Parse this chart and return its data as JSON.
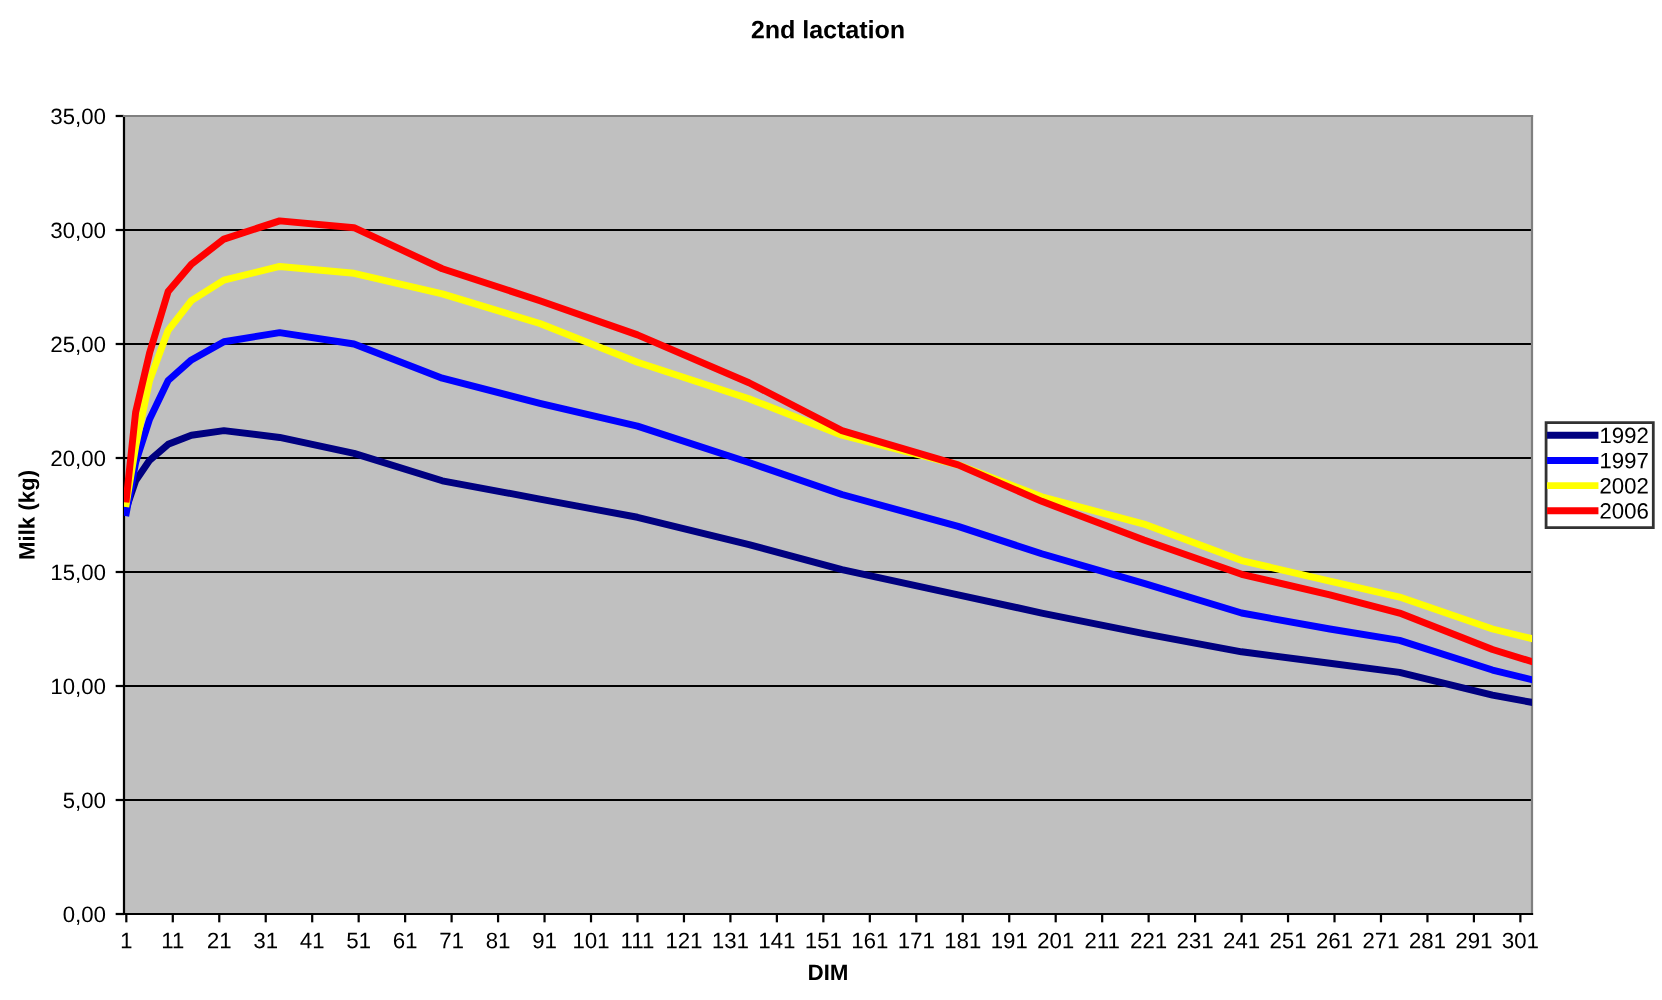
{
  "chart_data": {
    "type": "line",
    "title": "2nd lactation",
    "xlabel": "DIM",
    "ylabel": "Milk (kg)",
    "x": [
      1,
      3,
      6,
      10,
      15,
      22,
      34,
      50,
      69,
      90,
      111,
      135,
      155,
      180,
      198,
      220,
      241,
      260,
      275,
      295,
      303
    ],
    "series": [
      {
        "name": "1992",
        "color": "#000080",
        "values": [
          17.8,
          19.0,
          19.9,
          20.6,
          21.0,
          21.2,
          20.9,
          20.2,
          19.0,
          18.2,
          17.4,
          16.2,
          15.1,
          14.0,
          13.2,
          12.3,
          11.5,
          11.0,
          10.6,
          9.6,
          9.3
        ]
      },
      {
        "name": "1997",
        "color": "#0000ff",
        "values": [
          17.6,
          19.8,
          21.7,
          23.4,
          24.3,
          25.1,
          25.5,
          25.0,
          23.5,
          22.4,
          21.4,
          19.8,
          18.4,
          17.0,
          15.8,
          14.5,
          13.2,
          12.5,
          12.0,
          10.7,
          10.3
        ]
      },
      {
        "name": "2002",
        "color": "#ffff00",
        "values": [
          18.0,
          20.5,
          23.4,
          25.6,
          26.9,
          27.8,
          28.4,
          28.1,
          27.2,
          25.9,
          24.2,
          22.6,
          21.0,
          19.7,
          18.3,
          17.1,
          15.5,
          14.6,
          13.9,
          12.5,
          12.1
        ]
      },
      {
        "name": "2006",
        "color": "#ff0000",
        "values": [
          18.2,
          22.0,
          24.6,
          27.3,
          28.5,
          29.6,
          30.4,
          30.1,
          28.3,
          26.9,
          25.4,
          23.3,
          21.2,
          19.7,
          18.1,
          16.4,
          14.9,
          14.0,
          13.2,
          11.6,
          11.1
        ]
      }
    ],
    "xlim": [
      0.5,
      303.5
    ],
    "xticks": [
      1,
      11,
      21,
      31,
      41,
      51,
      61,
      71,
      81,
      91,
      101,
      111,
      121,
      131,
      141,
      151,
      161,
      171,
      181,
      191,
      201,
      211,
      221,
      231,
      241,
      251,
      261,
      271,
      281,
      291,
      301
    ],
    "ylim": [
      0,
      35
    ],
    "yticks": [
      {
        "value": 0,
        "label": "0,00"
      },
      {
        "value": 5,
        "label": "5,00"
      },
      {
        "value": 10,
        "label": "10,00"
      },
      {
        "value": 15,
        "label": "15,00"
      },
      {
        "value": 20,
        "label": "20,00"
      },
      {
        "value": 25,
        "label": "25,00"
      },
      {
        "value": 30,
        "label": "30,00"
      },
      {
        "value": 35,
        "label": "35,00"
      }
    ],
    "grid": "y",
    "legend": "right",
    "marker": "none",
    "line_style": "solid"
  }
}
